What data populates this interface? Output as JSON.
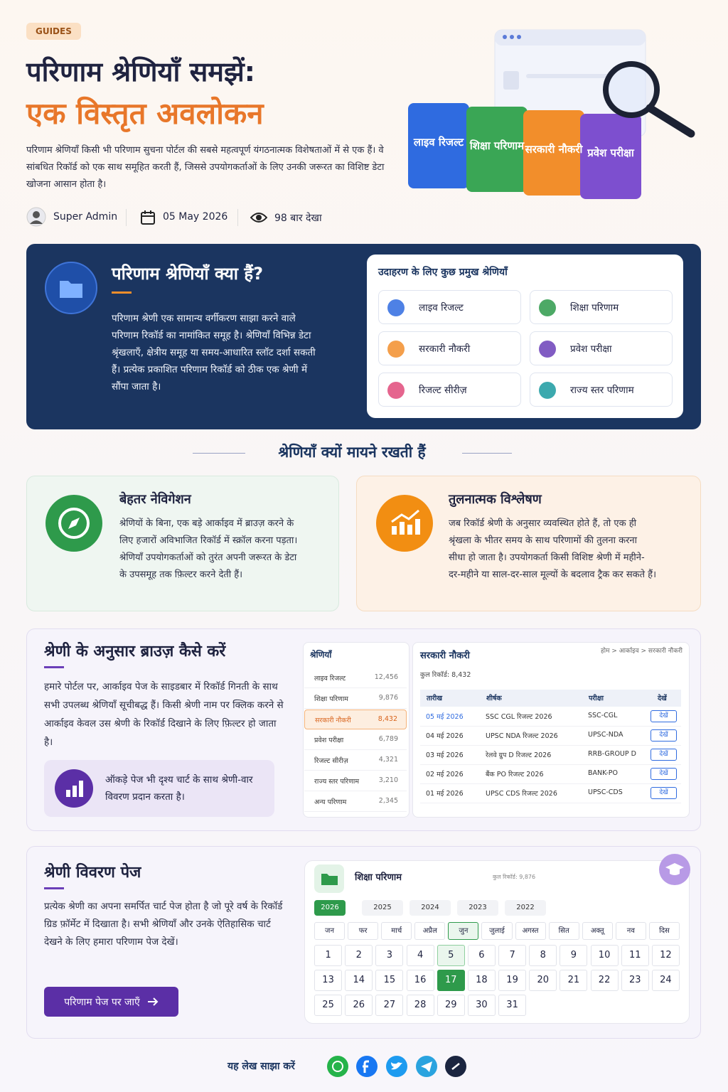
{
  "header": {
    "badge": "GUIDES",
    "title_line1": "परिणाम श्रेणियाँ समझें:",
    "title_line2": "एक विस्तृत अवलोकन",
    "intro": "परिणाम श्रेणियाँ किसी भी परिणाम सुचना पोर्टल की सबसे महत्वपूर्ण यंगठनात्मक विशेषताओं में से एक हैं। वे सांबधित रिकॉर्ड को एक साथ समूहित करती हैं, जिससे उपयोगकर्ताओं के लिए उनकी जरूरत का विशिष्ट डेटा खोजना आसान होता है।",
    "author": "Super Admin",
    "date": "05 May 2026",
    "views": "98 बार देखा"
  },
  "hero_folders": [
    "लाइव रिजल्ट",
    "शिक्षा परिणाम",
    "सरकारी नौकरी",
    "प्रवेश परीक्षा"
  ],
  "what": {
    "title": "परिणाम श्रेणियाँ क्या हैं?",
    "body": "परिणाम श्रेणी एक सामान्य वर्गीकरण साझा करने वाले परिणाम रिकॉर्ड का नामांकित समूह है। श्रेणियाँ विभिन्न डेटा श्रृंखलाएँ, क्षेत्रीय समूह या समय-आधारित स्लॉट दर्शा सकती हैं। प्रत्येक प्रकाशित परिणाम रिकॉर्ड को ठीक एक श्रेणी में सौंपा जाता है।",
    "examples_title": "उदाहरण के लिए कुछ प्रमुख श्रेणियाँ",
    "examples": [
      "लाइव रिजल्ट",
      "शिक्षा परिणाम",
      "सरकारी नौकरी",
      "प्रवेश परीक्षा",
      "रिजल्ट सीरीज़",
      "राज्य स्तर परिणाम"
    ]
  },
  "why": {
    "title": "श्रेणियाँ क्यों मायने रखती हैं",
    "cards": [
      {
        "title": "बेहतर नेविगेशन",
        "body": "श्रेणियों के बिना, एक बड़े आर्काइव में ब्राउज़ करने के लिए हजारों अविभाजित रिकॉर्ड में स्क्रॉल करना पड़ता। श्रेणियाँ उपयोगकर्ताओं को तुरंत अपनी जरूरत के डेटा के उपसमूह तक फ़िल्टर करने देती हैं।"
      },
      {
        "title": "तुलनात्मक विश्लेषण",
        "body": "जब रिकॉर्ड श्रेणी के अनुसार व्यवस्थित होते हैं, तो एक ही श्रृंखला के भीतर समय के साथ परिणामों की तुलना करना सीधा हो जाता है। उपयोगकर्ता किसी विशिष्ट श्रेणी में महीने-दर-महीने या साल-दर-साल मूल्यों के बदलाव ट्रैक कर सकते हैं।"
      }
    ]
  },
  "browse": {
    "title": "श्रेणी के अनुसार ब्राउज़ कैसे करें",
    "body": "हमारे पोर्टल पर, आर्काइव पेज के साइडबार में रिकॉर्ड गिनती के साथ सभी उपलब्ध श्रेणियाँ सूचीबद्ध हैं। किसी श्रेणी नाम पर क्लिक करने से आर्काइव केवल उस श्रेणी के रिकॉर्ड दिखाने के लिए फ़िल्टर हो जाता है।",
    "note": "ऑकड़े पेज भी दृश्य चार्ट के साथ श्रेणी-वार विवरण प्रदान करता है।",
    "sidebar_title": "श्रेणियाँ",
    "sidebar": [
      {
        "name": "लाइव रिजल्ट",
        "count": "12,456"
      },
      {
        "name": "शिक्षा परिणाम",
        "count": "9,876"
      },
      {
        "name": "सरकारी नौकरी",
        "count": "8,432"
      },
      {
        "name": "प्रवेश परीक्षा",
        "count": "6,789"
      },
      {
        "name": "रिजल्ट सीरीज़",
        "count": "4,321"
      },
      {
        "name": "राज्य स्तर परिणाम",
        "count": "3,210"
      },
      {
        "name": "अन्य परिणाम",
        "count": "2,345"
      }
    ],
    "panel_title": "सरकारी नौकरी",
    "breadcrumb": "होम > आर्काइव > सरकारी नौकरी",
    "total": "कुल रिकॉर्ड: 8,432",
    "columns": [
      "तारीख",
      "शीर्षक",
      "परीक्षा",
      "देखें"
    ],
    "rows": [
      [
        "05 मई 2026",
        "SSC CGL रिजल्ट 2026",
        "SSC-CGL",
        "देखें"
      ],
      [
        "04 मई 2026",
        "UPSC NDA रिजल्ट 2026",
        "UPSC-NDA",
        "देखें"
      ],
      [
        "03 मई 2026",
        "रेलवे ग्रुप D रिजल्ट 2026",
        "RRB-GROUP D",
        "देखें"
      ],
      [
        "02 मई 2026",
        "बैंक PO रिजल्ट 2026",
        "BANK-PO",
        "देखें"
      ],
      [
        "01 मई 2026",
        "UPSC CDS रिजल्ट 2026",
        "UPSC-CDS",
        "देखें"
      ]
    ]
  },
  "detail": {
    "title": "श्रेणी विवरण पेज",
    "body": "प्रत्येक श्रेणी का अपना समर्पित चार्ट पेज होता है जो पूरे वर्ष के रिकॉर्ड ग्रिड फ़ॉर्मेट में दिखाता है। सभी श्रेणियाँ और उनके ऐतिहासिक चार्ट देखने के लिए हमारा परिणाम पेज देखें।",
    "button": "परिणाम पेज पर जाएँ",
    "card_title": "शिक्षा परिणाम",
    "card_total": "कुल रिकॉर्ड: 9,876",
    "years": [
      "2026",
      "2025",
      "2024",
      "2023",
      "2022"
    ],
    "months": [
      "जन",
      "फर",
      "मार्च",
      "अप्रैल",
      "जुन",
      "जुलाई",
      "अगस्त",
      "सित",
      "अक्तू",
      "नव",
      "दिस"
    ],
    "days": [
      1,
      2,
      3,
      4,
      5,
      6,
      7,
      8,
      9,
      10,
      11,
      12,
      13,
      14,
      15,
      16,
      17,
      18,
      19,
      20,
      21,
      22,
      23,
      24,
      25,
      26,
      27,
      28,
      29,
      30,
      31
    ]
  },
  "share": {
    "label": "यह लेख साझा करें"
  }
}
